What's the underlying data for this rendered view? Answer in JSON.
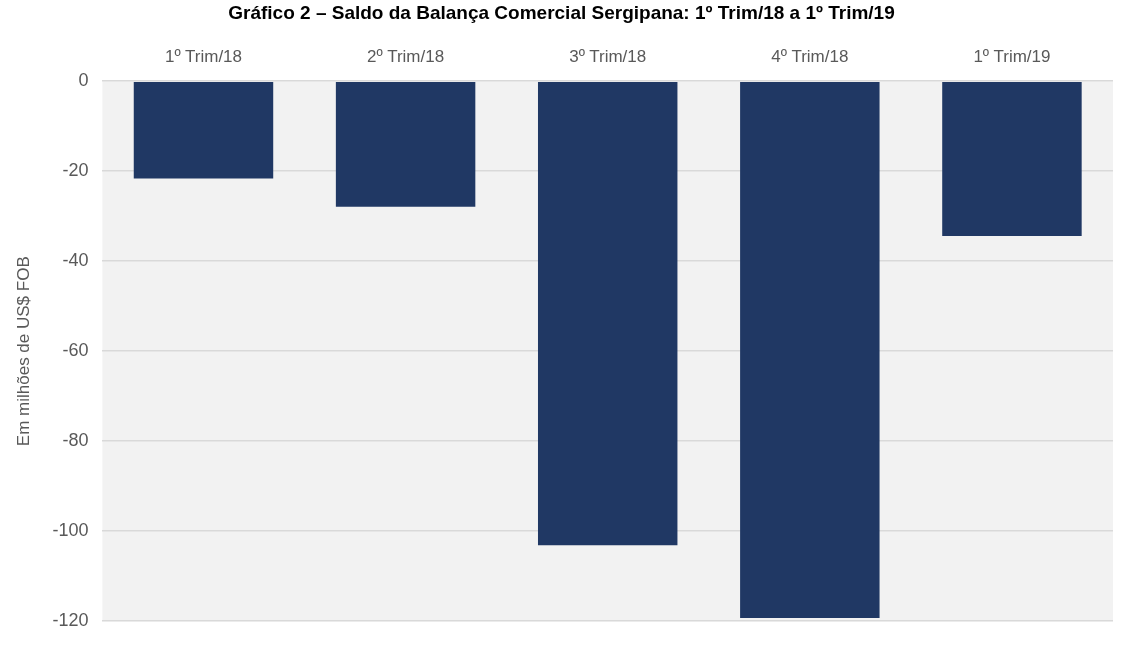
{
  "chart_data": {
    "type": "bar",
    "title": "Gráfico 2 – Saldo da Balança Comercial Sergipana: 1º Trim/18 a 1º Trim/19",
    "ylabel": "Em milhões de US$ FOB",
    "categories": [
      "1º Trim/18",
      "2º Trim/18",
      "3º Trim/18",
      "4º Trim/18",
      "1º Trim/19"
    ],
    "values": [
      -21.6,
      -27.9,
      -103.1,
      -119.3,
      -34.4
    ],
    "color": "#203864",
    "ylim": [
      -120,
      0
    ],
    "yticks": [
      -120,
      -100,
      -80,
      -60,
      -40,
      -20,
      0
    ],
    "grid": "y",
    "legend": false
  }
}
